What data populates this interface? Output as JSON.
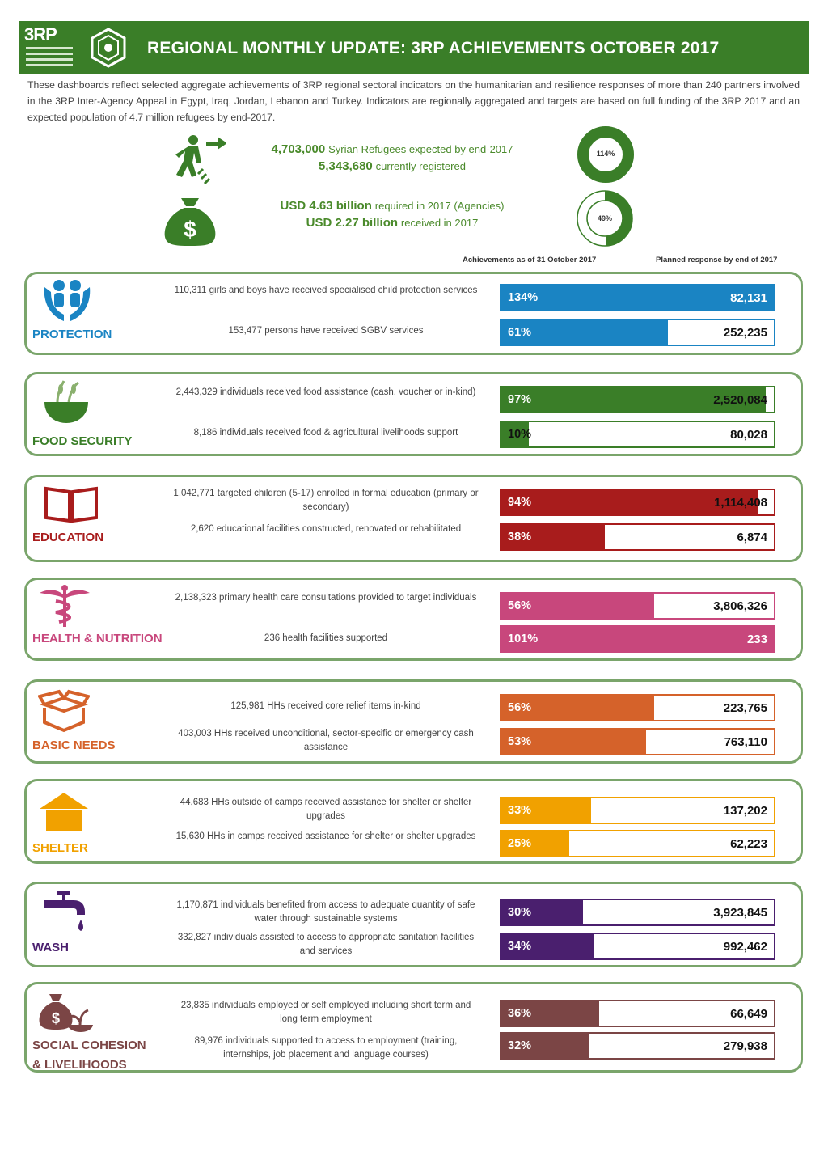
{
  "header": {
    "logo_text": "3RP",
    "title": "REGIONAL MONTHLY UPDATE: 3RP ACHIEVEMENTS OCTOBER 2017"
  },
  "intro": "These dashboards reflect selected aggregate achievements of 3RP regional sectoral indicators on the humanitarian and resilience responses of more than 240 partners involved in the 3RP Inter-Agency Appeal in Egypt, Iraq, Jordan, Lebanon and Turkey. Indicators are regionally aggregated and targets are based on full funding of the 3RP 2017 and an expected population of 4.7 million refugees by end-2017.",
  "summary": {
    "refugees_expected_value": "4,703,000",
    "refugees_expected_label": "Syrian Refugees expected by end-2017",
    "refugees_registered_value": "5,343,680",
    "refugees_registered_label": "currently registered",
    "refugees_pct_label": "114%",
    "refugees_pct": 114,
    "funding_required_value": "USD 4.63 billion",
    "funding_required_label": "required in 2017 (Agencies)",
    "funding_received_value": "USD 2.27 billion",
    "funding_received_label": "received in 2017",
    "funding_pct_label": "49%",
    "funding_pct": 49
  },
  "columns": {
    "achievements": "Achievements as of 31 October 2017",
    "planned": "Planned response by end of 2017"
  },
  "colors": {
    "protection": "#1a84c3",
    "food_security": "#3a7e28",
    "education": "#a81c1c",
    "health": "#c8477c",
    "basic_needs": "#d5622a",
    "shelter": "#f1a100",
    "wash": "#4a1f6e",
    "livelihoods": "#7b4545",
    "green": "#4a8a2b"
  },
  "sectors": [
    {
      "name": "PROTECTION",
      "icon": "protection-hands-icon",
      "indicators": [
        {
          "text": "110,311 girls and boys have received specialised child protection services",
          "pct_label": "134%",
          "pct": 134,
          "target": "82,131"
        },
        {
          "text": "153,477 persons have received SGBV services",
          "pct_label": "61%",
          "pct": 61,
          "target": "252,235"
        }
      ]
    },
    {
      "name": "FOOD SECURITY",
      "icon": "wheat-bowl-icon",
      "indicators": [
        {
          "text": "2,443,329 individuals received food assistance (cash, voucher or in-kind)",
          "pct_label": "97%",
          "pct": 97,
          "target": "2,520,084"
        },
        {
          "text": "8,186 individuals received food & agricultural livelihoods support",
          "pct_label": "10%",
          "pct": 10,
          "target": "80,028"
        }
      ]
    },
    {
      "name": "EDUCATION",
      "icon": "book-icon",
      "indicators": [
        {
          "text": "1,042,771 targeted children (5-17) enrolled in formal education (primary or secondary)",
          "pct_label": "94%",
          "pct": 94,
          "target": "1,114,408"
        },
        {
          "text": "2,620 educational facilities constructed, renovated or rehabilitated",
          "pct_label": "38%",
          "pct": 38,
          "target": "6,874"
        }
      ]
    },
    {
      "name": "HEALTH & NUTRITION",
      "icon": "caduceus-icon",
      "indicators": [
        {
          "text": "2,138,323 primary health care consultations provided to target individuals",
          "pct_label": "56%",
          "pct": 56,
          "target": "3,806,326"
        },
        {
          "text": "236 health facilities supported",
          "pct_label": "101%",
          "pct": 101,
          "target": "233"
        }
      ]
    },
    {
      "name": "BASIC NEEDS",
      "icon": "box-icon",
      "indicators": [
        {
          "text": "125,981 HHs received core relief items in-kind",
          "pct_label": "56%",
          "pct": 56,
          "target": "223,765"
        },
        {
          "text": "403,003 HHs received unconditional, sector-specific or emergency cash assistance",
          "pct_label": "53%",
          "pct": 53,
          "target": "763,110"
        }
      ]
    },
    {
      "name": "SHELTER",
      "icon": "house-icon",
      "indicators": [
        {
          "text": "44,683 HHs outside of camps received assistance for shelter or shelter upgrades",
          "pct_label": "33%",
          "pct": 33,
          "target": "137,202"
        },
        {
          "text": "15,630 HHs in camps received assistance for shelter or shelter upgrades",
          "pct_label": "25%",
          "pct": 25,
          "target": "62,223"
        }
      ]
    },
    {
      "name": "WASH",
      "icon": "water-tap-icon",
      "indicators": [
        {
          "text": "1,170,871 individuals benefited from access to adequate quantity of safe water through sustainable systems",
          "pct_label": "30%",
          "pct": 30,
          "target": "3,923,845"
        },
        {
          "text": "332,827 individuals assisted to access to appropriate sanitation facilities and services",
          "pct_label": "34%",
          "pct": 34,
          "target": "992,462"
        }
      ]
    },
    {
      "name": "SOCIAL COHESION & LIVELIHOODS",
      "name_line1": "SOCIAL COHESION",
      "name_line2": "& LIVELIHOODS",
      "icon": "money-bag-plant-icon",
      "indicators": [
        {
          "text": "23,835 individuals employed or self employed including short term and long term employment",
          "pct_label": "36%",
          "pct": 36,
          "target": "66,649"
        },
        {
          "text": "89,976 individuals supported to access to employment (training, internships, job placement and language courses)",
          "pct_label": "32%",
          "pct": 32,
          "target": "279,938"
        }
      ]
    }
  ]
}
